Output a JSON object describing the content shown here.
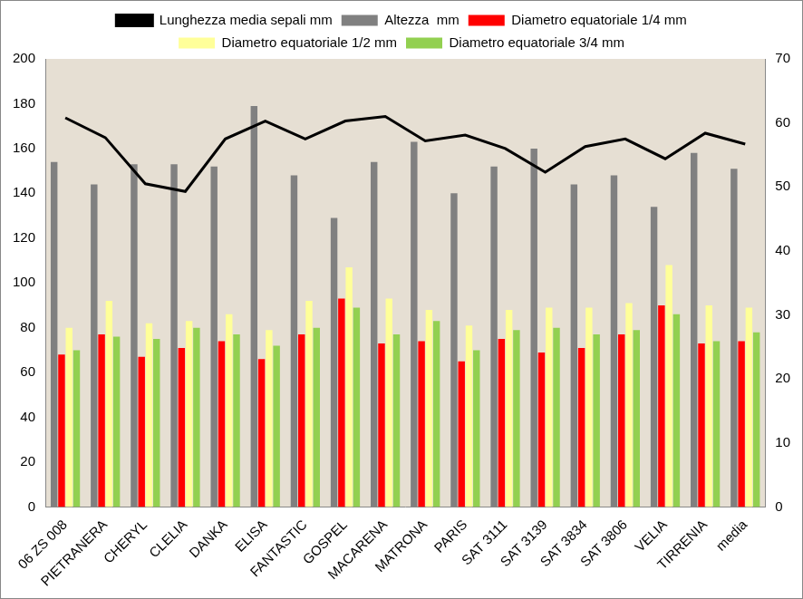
{
  "chart_data": {
    "type": "bar",
    "categories": [
      "06 ZS 008",
      "PIETRANERA",
      "CHERYL",
      "CLELIA",
      "DANKA",
      "ELISA",
      "FANTASTIC",
      "GOSPEL",
      "MACARENA",
      "MATRONA",
      "PARIS",
      "SAT 3111",
      "SAT 3139",
      "SAT 3834",
      "SAT 3806",
      "VELIA",
      "TIRRENIA",
      "media"
    ],
    "series": [
      {
        "name": "Altezza  mm",
        "color": "#808080",
        "values": [
          154,
          144,
          153,
          153,
          152,
          179,
          148,
          129,
          154,
          163,
          140,
          152,
          160,
          144,
          148,
          134,
          158,
          151
        ]
      },
      {
        "name": "Diametro equatoriale 1/4 mm",
        "color": "#ff0000",
        "values": [
          68,
          77,
          67,
          71,
          74,
          66,
          77,
          93,
          73,
          74,
          65,
          75,
          69,
          71,
          77,
          90,
          73,
          74
        ]
      },
      {
        "name": "Diametro equatoriale 1/2 mm",
        "color": "#ffff99",
        "values": [
          80,
          92,
          82,
          83,
          86,
          79,
          92,
          107,
          93,
          88,
          81,
          88,
          89,
          89,
          91,
          108,
          90,
          89
        ]
      },
      {
        "name": "Diametro equatoriale 3/4 mm",
        "color": "#92d050",
        "values": [
          70,
          76,
          75,
          80,
          77,
          72,
          80,
          89,
          77,
          83,
          70,
          79,
          80,
          77,
          79,
          86,
          74,
          78
        ]
      },
      {
        "name": "Lunghezza media sepali mm",
        "color": "#000000",
        "type": "line",
        "axis": "y2",
        "values": [
          60.8,
          57.7,
          50.5,
          49.3,
          57.5,
          60.3,
          57.5,
          60.3,
          61,
          57.2,
          58.1,
          56,
          52.3,
          56.3,
          57.5,
          54.4,
          58.4,
          56.7
        ]
      }
    ],
    "ylim": [
      0,
      200
    ],
    "yticks": [
      0,
      20,
      40,
      60,
      80,
      100,
      120,
      140,
      160,
      180,
      200
    ],
    "y2lim": [
      0,
      70
    ],
    "y2ticks": [
      0,
      10,
      20,
      30,
      40,
      50,
      60,
      70
    ],
    "grid": false,
    "legend": "top"
  }
}
